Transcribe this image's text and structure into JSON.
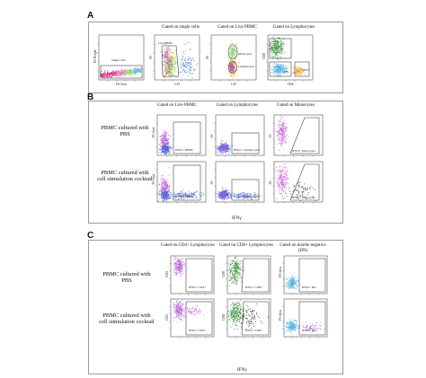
{
  "chart_data": {
    "type": "scatter",
    "title": "",
    "description_note": "",
    "panels": [
      {
        "letter": "A",
        "plots": [
          {
            "title": "",
            "xlabel": "FS Area",
            "ylabel": "FS Height",
            "gate_labels": [
              "Single cells"
            ]
          },
          {
            "title": "Gated on single cells",
            "xlabel": "L/D",
            "ylabel": "SS",
            "gate_labels": [
              "Live PBMC"
            ]
          },
          {
            "title": "Gated on Live PBMC",
            "xlabel": "L/D",
            "ylabel": "SS",
            "gate_labels": [
              "Monocytes",
              "Lymphocytes"
            ]
          },
          {
            "title": "Gated on Lymphocytes",
            "xlabel": "CD4",
            "ylabel": "CD8",
            "gate_labels": [
              "CD8+",
              "CD4+",
              "DN"
            ]
          }
        ]
      },
      {
        "letter": "B",
        "column_titles": [
          "Gated on Live PBMC",
          "Gated on Lymphocytes",
          "Gated on Monocytes"
        ],
        "rows": [
          {
            "label": "PBMC cultured with PBS",
            "gate_labels": [
              "IFNG+ PBMC",
              "IFNG+ Lymphocytes",
              "IFNG+ Monocytes"
            ]
          },
          {
            "label": "PBMC cultured with cell stimulation cocktail",
            "gate_labels": [
              "IFNG+ PBMC",
              "IFNG+ Lymphocytes",
              "IFNG+ Monocytes"
            ]
          }
        ],
        "ylabels": [
          "FS Area",
          "SS",
          "SS"
        ],
        "xlabel": "IFNγ"
      },
      {
        "letter": "C",
        "column_titles": [
          "Gated on CD4+ Lymphocytes",
          "Gated on CD8+ Lymphocytes",
          "Gated on double negative (DN)"
        ],
        "rows": [
          {
            "label": "PBMC cultured with PBS",
            "gate_labels": [
              "IFNG+ CD4+",
              "IFNG+ CD8+",
              "IFNG+ DN"
            ]
          },
          {
            "label": "PBMC cultured with cell stimulation cocktail",
            "gate_labels": [
              "IFNG+ CD4+",
              "IFNG+ CD8+",
              "IFNG+ DN"
            ]
          }
        ],
        "ylabels": [
          "CD4",
          "CD8",
          "FS Area"
        ],
        "xlabel": "IFNγ"
      }
    ],
    "colors": {
      "cd8": "#2e8b2e",
      "cd4": "#f39c12",
      "dn": "#4ab3e0",
      "pbmc": "#b35ad6",
      "lymph": "#3b5bd6",
      "mono": "#c45ad6",
      "ifng_pos": "#111111",
      "gate": "#333333",
      "frame": "#9a9a9a"
    }
  }
}
